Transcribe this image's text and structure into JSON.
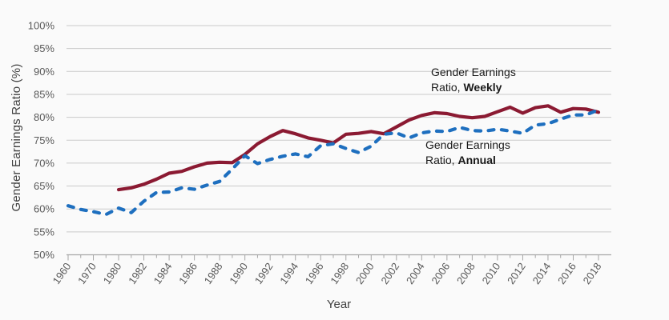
{
  "colors": {
    "background": "#fafafa",
    "gridline": "#c9c9c9",
    "axis": "#a6a6a6",
    "tick_text": "#595959",
    "axis_title_text": "#404040",
    "annotation_text": "#1a1a1a",
    "weekly_line": "#8b1a32",
    "annual_line": "#1e6fbf"
  },
  "chart_data": {
    "type": "line",
    "title": "",
    "xlabel": "Year",
    "ylabel": "Gender Earnings Ratio (%)",
    "ylim": [
      50,
      100
    ],
    "ytick_step": 5,
    "ytick_labels": [
      "50%",
      "55%",
      "60%",
      "65%",
      "70%",
      "75%",
      "80%",
      "85%",
      "90%",
      "95%",
      "100%"
    ],
    "grid": true,
    "legend": "inline-annotations",
    "xtick_label_every": 2,
    "categories": [
      1960,
      1965,
      1970,
      1975,
      1980,
      1981,
      1982,
      1983,
      1984,
      1985,
      1986,
      1987,
      1988,
      1989,
      1990,
      1991,
      1992,
      1993,
      1994,
      1995,
      1996,
      1997,
      1998,
      1999,
      2000,
      2001,
      2002,
      2003,
      2004,
      2005,
      2006,
      2007,
      2008,
      2009,
      2010,
      2011,
      2012,
      2013,
      2014,
      2015,
      2016,
      2017,
      2018
    ],
    "series": [
      {
        "id": "weekly",
        "name": "Gender Earnings Ratio, Weekly",
        "color": "#8b1a32",
        "line_style": "solid",
        "values": [
          null,
          null,
          null,
          null,
          64.2,
          64.6,
          65.4,
          66.5,
          67.8,
          68.2,
          69.2,
          70.0,
          70.2,
          70.1,
          71.9,
          74.2,
          75.8,
          77.1,
          76.4,
          75.5,
          75.0,
          74.4,
          76.3,
          76.5,
          76.9,
          76.4,
          77.9,
          79.4,
          80.4,
          81.0,
          80.8,
          80.2,
          79.9,
          80.2,
          81.2,
          82.2,
          80.9,
          82.1,
          82.5,
          81.1,
          81.9,
          81.8,
          81.1
        ]
      },
      {
        "id": "annual",
        "name": "Gender Earnings Ratio, Annual",
        "color": "#1e6fbf",
        "line_style": "dashed",
        "values": [
          60.7,
          59.9,
          59.4,
          58.8,
          60.2,
          59.2,
          61.7,
          63.6,
          63.7,
          64.6,
          64.3,
          65.2,
          66.0,
          68.7,
          71.6,
          69.9,
          70.8,
          71.5,
          72.0,
          71.4,
          73.8,
          74.2,
          73.2,
          72.3,
          73.7,
          76.3,
          76.6,
          75.5,
          76.6,
          77.0,
          76.9,
          77.8,
          77.1,
          77.0,
          77.4,
          77.0,
          76.5,
          78.3,
          78.6,
          79.6,
          80.5,
          80.5,
          81.6
        ]
      }
    ],
    "annotations": [
      {
        "series": "weekly",
        "line1": "Gender Earnings",
        "line2_prefix": "Ratio, ",
        "line2_bold": "Weekly"
      },
      {
        "series": "annual",
        "line1": "Gender Earnings",
        "line2_prefix": "Ratio, ",
        "line2_bold": "Annual"
      }
    ]
  }
}
